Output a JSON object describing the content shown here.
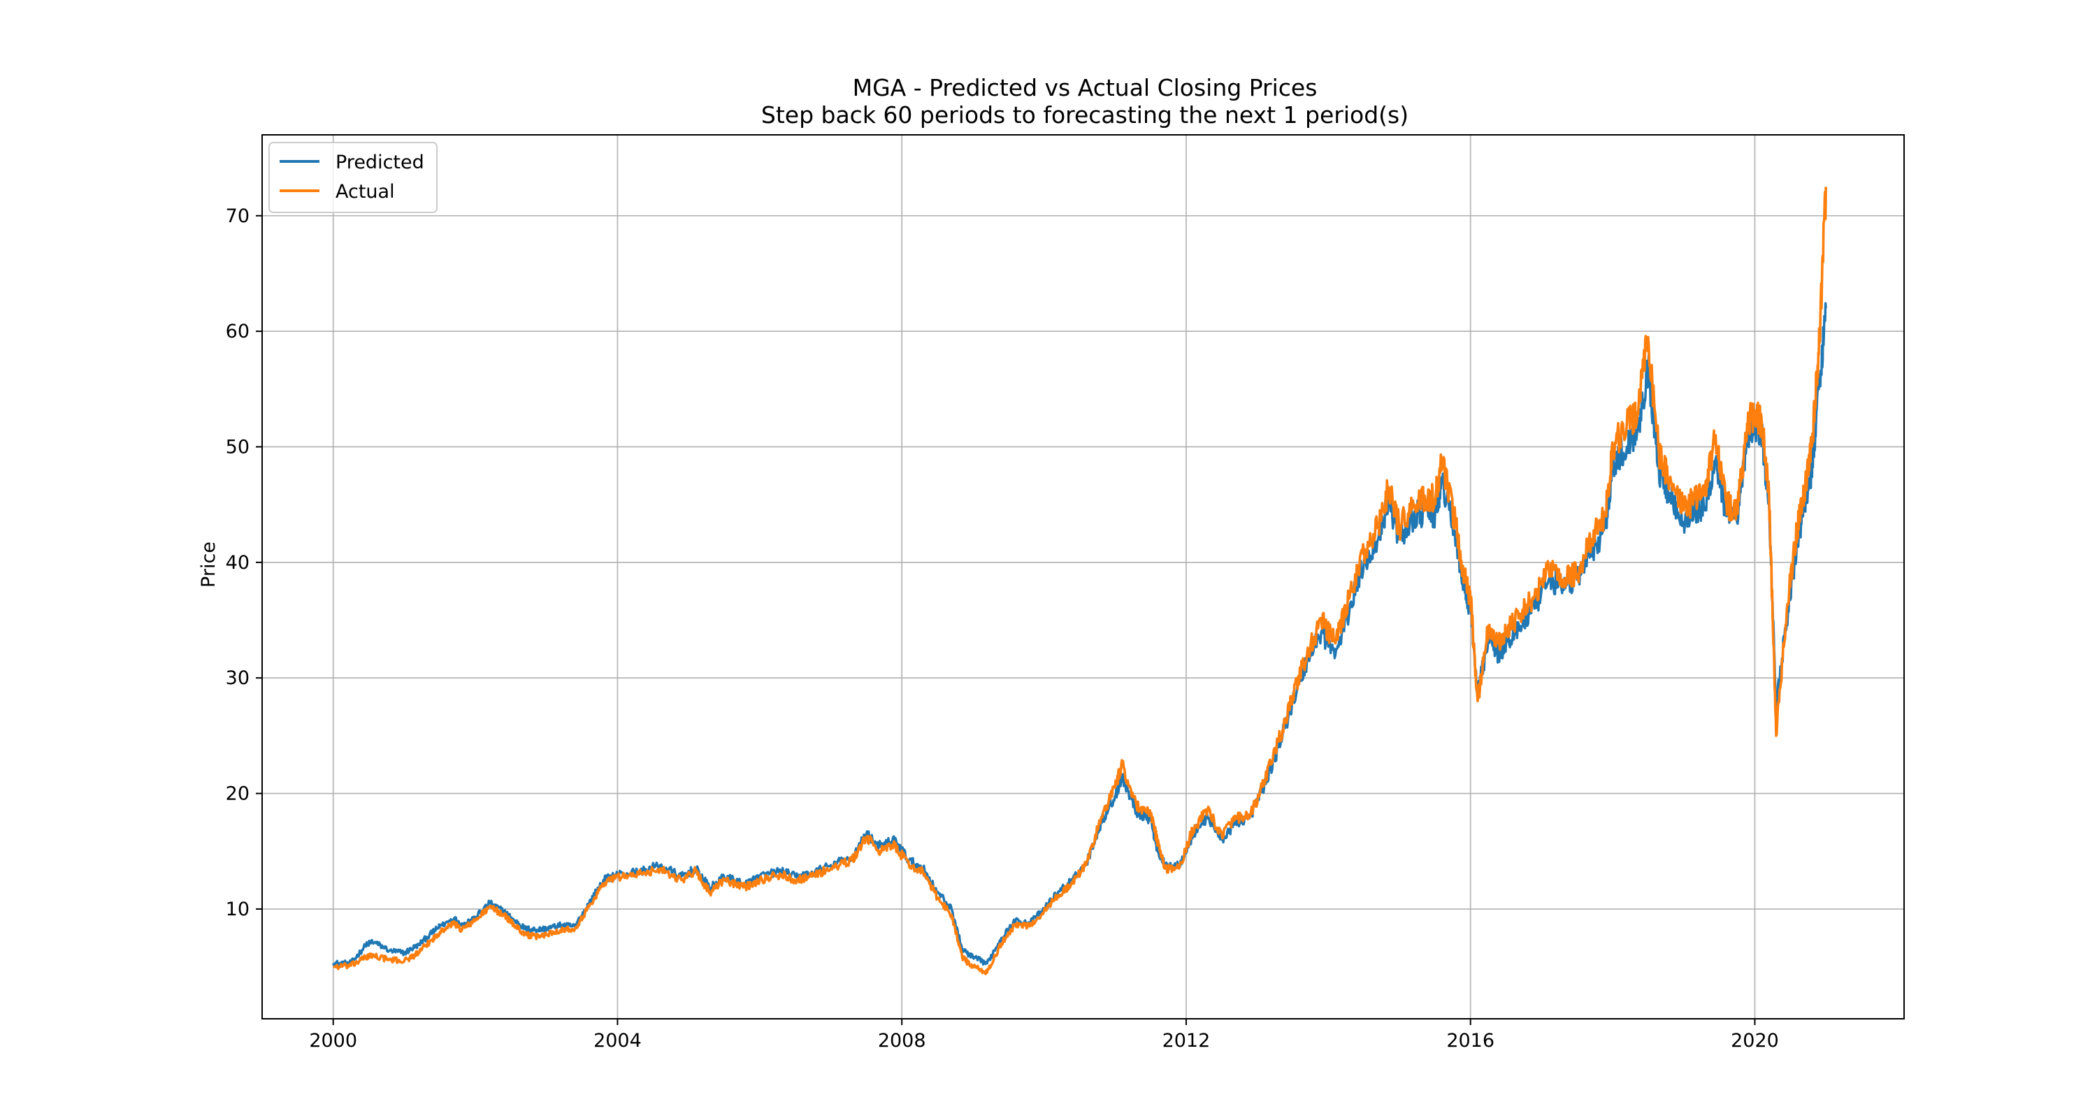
{
  "chart_data": {
    "type": "line",
    "title": "MGA - Predicted vs Actual Closing Prices",
    "subtitle": "Step back 60 periods to forecasting the next 1 period(s)",
    "xlabel": "",
    "ylabel": "Price",
    "xlim": [
      1999.0,
      2022.1
    ],
    "ylim": [
      0.5,
      77.0
    ],
    "x_ticks": [
      {
        "label": "2000",
        "value": 2000
      },
      {
        "label": "2004",
        "value": 2004
      },
      {
        "label": "2008",
        "value": 2008
      },
      {
        "label": "2012",
        "value": 2012
      },
      {
        "label": "2016",
        "value": 2016
      },
      {
        "label": "2020",
        "value": 2020
      }
    ],
    "y_ticks": [
      {
        "label": "10",
        "value": 10
      },
      {
        "label": "20",
        "value": 20
      },
      {
        "label": "30",
        "value": 30
      },
      {
        "label": "40",
        "value": 40
      },
      {
        "label": "50",
        "value": 50
      },
      {
        "label": "60",
        "value": 60
      },
      {
        "label": "70",
        "value": 70
      }
    ],
    "grid": true,
    "legend_position": "top-left",
    "series": [
      {
        "name": "Predicted",
        "color": "#1f77b4",
        "x": [
          2000.0,
          2000.25,
          2000.45,
          2000.55,
          2000.8,
          2001.0,
          2001.2,
          2001.4,
          2001.5,
          2001.7,
          2001.8,
          2002.0,
          2002.2,
          2002.4,
          2002.55,
          2002.7,
          2002.85,
          2003.0,
          2003.2,
          2003.4,
          2003.6,
          2003.8,
          2004.0,
          2004.3,
          2004.6,
          2004.9,
          2005.1,
          2005.3,
          2005.5,
          2005.8,
          2006.0,
          2006.3,
          2006.5,
          2006.7,
          2007.0,
          2007.3,
          2007.5,
          2007.7,
          2007.9,
          2008.1,
          2008.3,
          2008.5,
          2008.7,
          2008.85,
          2009.0,
          2009.2,
          2009.4,
          2009.6,
          2009.8,
          2010.0,
          2010.2,
          2010.4,
          2010.6,
          2010.8,
          2011.0,
          2011.1,
          2011.3,
          2011.5,
          2011.6,
          2011.7,
          2011.9,
          2012.1,
          2012.3,
          2012.5,
          2012.7,
          2012.9,
          2013.1,
          2013.3,
          2013.5,
          2013.7,
          2013.9,
          2014.1,
          2014.3,
          2014.5,
          2014.7,
          2014.85,
          2015.0,
          2015.2,
          2015.4,
          2015.5,
          2015.6,
          2015.8,
          2015.9,
          2016.0,
          2016.1,
          2016.25,
          2016.4,
          2016.5,
          2016.7,
          2016.9,
          2017.1,
          2017.3,
          2017.5,
          2017.7,
          2017.9,
          2018.0,
          2018.2,
          2018.35,
          2018.5,
          2018.65,
          2018.8,
          2019.0,
          2019.15,
          2019.3,
          2019.45,
          2019.6,
          2019.75,
          2019.9,
          2020.0,
          2020.1,
          2020.2,
          2020.3,
          2020.45,
          2020.6,
          2020.7,
          2020.8,
          2020.9,
          2021.0
        ],
        "y": [
          5.3,
          5.3,
          6.8,
          7.2,
          6.4,
          6.2,
          6.9,
          8.0,
          8.5,
          9.2,
          8.6,
          9.3,
          10.5,
          9.8,
          9.0,
          8.3,
          8.2,
          8.3,
          8.6,
          8.5,
          10.5,
          12.5,
          13.0,
          13.2,
          13.8,
          12.8,
          13.5,
          11.8,
          12.8,
          12.2,
          12.8,
          13.3,
          12.8,
          13.0,
          13.8,
          14.5,
          16.5,
          15.4,
          16.0,
          14.2,
          13.5,
          11.5,
          10.0,
          6.5,
          5.8,
          5.3,
          7.5,
          9.0,
          8.8,
          10.0,
          11.5,
          12.5,
          14.0,
          17.5,
          19.8,
          21.5,
          18.5,
          17.8,
          15.0,
          13.8,
          13.8,
          16.5,
          18.0,
          16.0,
          17.5,
          18.0,
          20.8,
          24.0,
          28.0,
          31.5,
          34.0,
          32.0,
          36.0,
          40.0,
          42.0,
          45.5,
          42.0,
          44.0,
          44.5,
          44.0,
          47.0,
          42.0,
          38.0,
          36.0,
          28.5,
          33.5,
          32.0,
          33.0,
          34.5,
          36.0,
          38.5,
          38.0,
          38.5,
          41.0,
          43.0,
          48.5,
          50.0,
          51.5,
          57.0,
          48.0,
          46.0,
          43.5,
          44.5,
          44.5,
          49.0,
          44.0,
          43.5,
          51.0,
          52.0,
          51.0,
          45.0,
          27.5,
          35.0,
          42.0,
          45.0,
          48.0,
          55.0,
          62.0
        ]
      },
      {
        "name": "Actual",
        "color": "#ff7f0e",
        "x": [
          2000.0,
          2000.25,
          2000.45,
          2000.55,
          2000.8,
          2001.0,
          2001.2,
          2001.4,
          2001.5,
          2001.7,
          2001.8,
          2002.0,
          2002.2,
          2002.4,
          2002.55,
          2002.7,
          2002.85,
          2003.0,
          2003.2,
          2003.4,
          2003.6,
          2003.8,
          2004.0,
          2004.3,
          2004.6,
          2004.9,
          2005.1,
          2005.3,
          2005.5,
          2005.8,
          2006.0,
          2006.3,
          2006.5,
          2006.7,
          2007.0,
          2007.3,
          2007.5,
          2007.7,
          2007.9,
          2008.1,
          2008.3,
          2008.5,
          2008.7,
          2008.85,
          2009.0,
          2009.2,
          2009.4,
          2009.6,
          2009.8,
          2010.0,
          2010.2,
          2010.4,
          2010.6,
          2010.8,
          2011.0,
          2011.1,
          2011.3,
          2011.5,
          2011.6,
          2011.7,
          2011.9,
          2012.1,
          2012.3,
          2012.5,
          2012.7,
          2012.9,
          2013.1,
          2013.3,
          2013.5,
          2013.7,
          2013.9,
          2014.1,
          2014.3,
          2014.5,
          2014.7,
          2014.85,
          2015.0,
          2015.2,
          2015.4,
          2015.5,
          2015.6,
          2015.8,
          2015.9,
          2016.0,
          2016.1,
          2016.25,
          2016.4,
          2016.5,
          2016.7,
          2016.9,
          2017.1,
          2017.3,
          2017.5,
          2017.7,
          2017.9,
          2018.0,
          2018.2,
          2018.35,
          2018.5,
          2018.65,
          2018.8,
          2019.0,
          2019.15,
          2019.3,
          2019.45,
          2019.6,
          2019.75,
          2019.9,
          2020.0,
          2020.1,
          2020.2,
          2020.3,
          2020.45,
          2020.6,
          2020.7,
          2020.8,
          2020.9,
          2021.0
        ],
        "y": [
          5.0,
          5.1,
          5.8,
          6.0,
          5.6,
          5.5,
          6.2,
          7.4,
          8.0,
          8.8,
          8.2,
          9.0,
          10.2,
          9.5,
          8.6,
          7.8,
          7.6,
          7.8,
          8.2,
          8.3,
          10.2,
          12.2,
          12.8,
          13.0,
          13.5,
          12.5,
          13.3,
          11.4,
          12.5,
          11.9,
          12.5,
          13.0,
          12.5,
          12.8,
          13.5,
          14.2,
          16.2,
          15.0,
          15.5,
          13.8,
          13.2,
          11.0,
          9.5,
          5.8,
          5.0,
          4.5,
          7.0,
          8.7,
          8.5,
          9.8,
          11.2,
          12.2,
          14.0,
          17.8,
          20.5,
          22.5,
          19.0,
          18.2,
          15.8,
          13.5,
          13.5,
          17.0,
          18.5,
          16.5,
          17.8,
          18.0,
          21.0,
          24.5,
          28.5,
          32.0,
          35.0,
          33.0,
          37.0,
          41.0,
          43.0,
          46.5,
          43.0,
          45.0,
          45.5,
          45.5,
          48.5,
          43.0,
          39.0,
          37.0,
          28.0,
          34.5,
          33.0,
          34.0,
          35.5,
          37.0,
          39.5,
          38.5,
          39.0,
          42.0,
          44.0,
          50.0,
          52.0,
          53.0,
          59.5,
          49.5,
          47.0,
          44.5,
          45.5,
          46.0,
          51.0,
          45.0,
          44.5,
          52.0,
          53.0,
          52.0,
          46.0,
          25.0,
          36.0,
          43.0,
          46.0,
          50.0,
          58.0,
          72.5
        ]
      }
    ]
  }
}
